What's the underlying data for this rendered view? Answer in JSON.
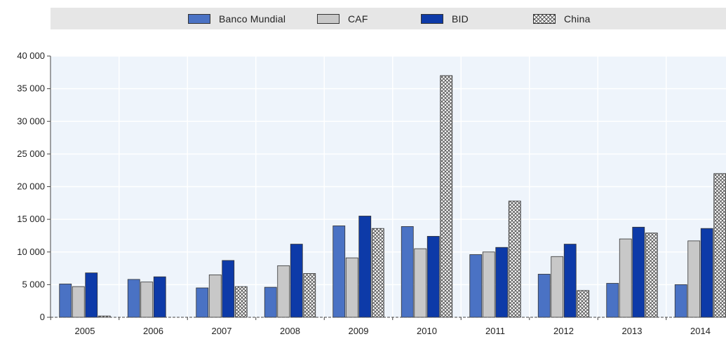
{
  "colors": {
    "banco_mundial": "#4a72c4",
    "caf": "#c8c8c8",
    "bid": "#0d3aa8",
    "china_pattern": "hatched",
    "plot_background": "#eef4fb",
    "legend_background": "#e6e6e6"
  },
  "chart_data": {
    "type": "bar",
    "title": "",
    "xlabel": "",
    "ylabel": "",
    "categories": [
      "2005",
      "2006",
      "2007",
      "2008",
      "2009",
      "2010",
      "2011",
      "2012",
      "2013",
      "2014"
    ],
    "series": [
      {
        "name": "Banco Mundial",
        "values": [
          5100,
          5800,
          4500,
          4600,
          14000,
          13900,
          9600,
          6600,
          5200,
          5000
        ]
      },
      {
        "name": "CAF",
        "values": [
          4700,
          5400,
          6500,
          7900,
          9100,
          10500,
          10000,
          9300,
          12000,
          11700
        ]
      },
      {
        "name": "BID",
        "values": [
          6800,
          6200,
          8700,
          11200,
          15500,
          12400,
          10700,
          11200,
          13800,
          13600
        ]
      },
      {
        "name": "China",
        "values": [
          200,
          0,
          4700,
          6700,
          13600,
          37000,
          17800,
          4100,
          12900,
          22000
        ]
      }
    ],
    "yticks": [
      "0",
      "5 000",
      "10 000",
      "15 000",
      "20 000",
      "25 000",
      "30 000",
      "35 000",
      "40 000"
    ],
    "ylim": [
      0,
      40000
    ],
    "grid": true,
    "legend_position": "top"
  }
}
